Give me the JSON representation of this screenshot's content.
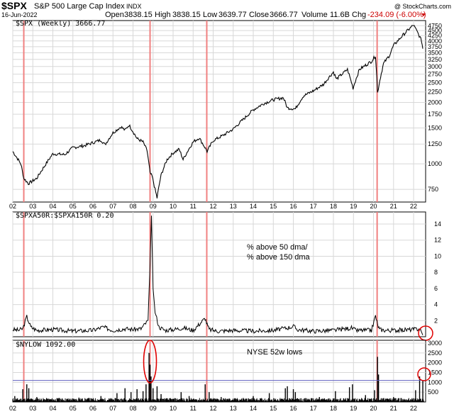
{
  "header": {
    "symbol": "$SPX",
    "name": "S&P 500 Large Cap Index",
    "exchange": "INDX",
    "credit": "@ StockCharts.com",
    "date": "16-Jun-2022",
    "open_label": "Open",
    "open": "3838.15",
    "high_label": "High",
    "high": "3838.15",
    "low_label": "Low",
    "low": "3639.77",
    "close_label": "Close",
    "close": "3666.77",
    "volume_label": "Volume",
    "volume": "11.6B",
    "chg_label": "Chg",
    "chg": "-234.09 (-6.00%)"
  },
  "colors": {
    "price": "#000000",
    "grid": "#d8d8d8",
    "marker": "#f08080",
    "circle": "#e00000",
    "threshold": "#6060c0",
    "chg": "#cc0000"
  },
  "chart_data": [
    {
      "type": "line",
      "label": "$SPX (Weekly) 3666.77",
      "scale": "log",
      "x_ticks": [
        "02",
        "03",
        "04",
        "05",
        "06",
        "07",
        "08",
        "09",
        "10",
        "11",
        "12",
        "13",
        "14",
        "15",
        "16",
        "17",
        "18",
        "19",
        "20",
        "21",
        "22"
      ],
      "y_ticks": [
        750,
        1000,
        1250,
        1500,
        1750,
        2000,
        2250,
        2500,
        2750,
        3000,
        3250,
        3500,
        3750,
        4000,
        4250,
        4500,
        4750
      ],
      "ylim": [
        650,
        4800
      ],
      "x": [
        2002.0,
        2002.4,
        2002.55,
        2002.78,
        2003.2,
        2003.6,
        2004.0,
        2004.6,
        2005.0,
        2005.6,
        2006.0,
        2006.4,
        2006.6,
        2007.0,
        2007.4,
        2007.6,
        2007.8,
        2008.2,
        2008.5,
        2008.7,
        2008.85,
        2008.95,
        2009.1,
        2009.2,
        2009.4,
        2009.7,
        2010.0,
        2010.3,
        2010.5,
        2011.0,
        2011.3,
        2011.7,
        2012.0,
        2012.5,
        2013.0,
        2013.5,
        2014.0,
        2014.5,
        2015.0,
        2015.5,
        2015.7,
        2016.1,
        2016.5,
        2017.0,
        2017.5,
        2018.0,
        2018.15,
        2018.7,
        2018.98,
        2019.3,
        2019.9,
        2020.1,
        2020.2,
        2020.5,
        2020.8,
        2021.0,
        2021.5,
        2021.99,
        2022.2,
        2022.4,
        2022.46
      ],
      "values": [
        1150,
        1000,
        850,
        800,
        850,
        980,
        1120,
        1110,
        1200,
        1230,
        1270,
        1310,
        1240,
        1420,
        1520,
        1460,
        1550,
        1330,
        1280,
        1160,
        900,
        870,
        750,
        680,
        880,
        1050,
        1130,
        1180,
        1050,
        1280,
        1340,
        1150,
        1300,
        1380,
        1480,
        1650,
        1840,
        1970,
        2060,
        2110,
        1880,
        1860,
        2150,
        2280,
        2450,
        2820,
        2600,
        2900,
        2350,
        2900,
        3180,
        3380,
        2230,
        3100,
        3400,
        3800,
        4300,
        4790,
        4400,
        4000,
        3666
      ]
    },
    {
      "type": "line",
      "label": "$SPXA50R:$SPXA150R 0.20",
      "ylim": [
        0,
        15.5
      ],
      "y_ticks": [
        2,
        4,
        6,
        8,
        10,
        12,
        14
      ],
      "annotation": [
        "% above 50 dma/",
        "% above 150 dma"
      ],
      "x": [
        2002.0,
        2002.3,
        2002.5,
        2002.7,
        2002.9,
        2003.2,
        2004.0,
        2005.0,
        2006.0,
        2006.5,
        2007.0,
        2007.6,
        2008.0,
        2008.4,
        2008.75,
        2008.85,
        2008.92,
        2009.0,
        2009.1,
        2009.3,
        2009.6,
        2010.0,
        2010.5,
        2011.0,
        2011.6,
        2011.7,
        2011.8,
        2012.2,
        2013.0,
        2014.0,
        2015.0,
        2015.7,
        2016.0,
        2016.2,
        2017.0,
        2018.0,
        2018.9,
        2019.1,
        2019.9,
        2020.1,
        2020.2,
        2020.3,
        2020.6,
        2021.0,
        2022.0,
        2022.3,
        2022.46
      ],
      "values": [
        0.9,
        0.8,
        1.0,
        2.5,
        1.2,
        0.8,
        0.9,
        0.7,
        0.8,
        1.2,
        0.8,
        1.0,
        0.9,
        1.0,
        2.0,
        9.0,
        15.0,
        6.0,
        3.0,
        1.2,
        0.8,
        0.9,
        1.1,
        0.8,
        2.3,
        1.5,
        0.9,
        0.7,
        0.8,
        0.7,
        0.8,
        1.1,
        1.3,
        0.9,
        0.7,
        0.8,
        1.1,
        0.8,
        0.8,
        2.6,
        1.5,
        0.9,
        0.8,
        0.8,
        0.9,
        1.0,
        0.2
      ]
    },
    {
      "type": "bar",
      "label": "$NYLOW 1092.00",
      "title": "NYSE 52w lows",
      "ylim": [
        0,
        3000
      ],
      "y_ticks": [
        500,
        1000,
        1500,
        2000,
        2500,
        3000
      ],
      "threshold": 1100,
      "x": [
        2002.1,
        2002.5,
        2002.7,
        2002.8,
        2003.2,
        2004.3,
        2005.3,
        2005.8,
        2006.4,
        2007.2,
        2007.6,
        2007.9,
        2008.2,
        2008.5,
        2008.65,
        2008.8,
        2008.85,
        2008.9,
        2009.0,
        2009.2,
        2009.4,
        2010.4,
        2010.8,
        2011.6,
        2011.8,
        2012.4,
        2013.5,
        2014.0,
        2014.8,
        2015.6,
        2015.7,
        2016.0,
        2016.1,
        2017.3,
        2018.1,
        2018.8,
        2018.95,
        2019.6,
        2020.05,
        2020.2,
        2020.25,
        2021.0,
        2022.1,
        2022.3,
        2022.46
      ],
      "values": [
        300,
        650,
        900,
        700,
        250,
        200,
        220,
        200,
        300,
        450,
        700,
        500,
        650,
        550,
        900,
        2500,
        1900,
        1300,
        700,
        800,
        400,
        500,
        300,
        900,
        500,
        250,
        200,
        300,
        450,
        700,
        800,
        650,
        500,
        250,
        550,
        750,
        900,
        350,
        600,
        2300,
        1400,
        250,
        600,
        1300,
        1092
      ]
    }
  ]
}
